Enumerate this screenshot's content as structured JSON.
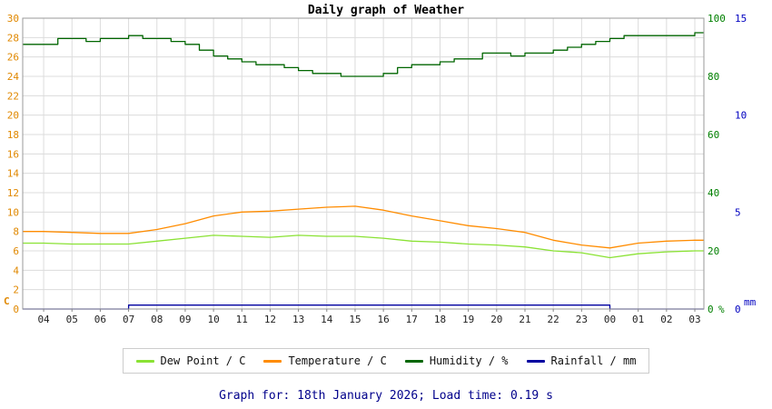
{
  "title": "Daily graph of Weather",
  "footer": "Graph for: 18th January 2026; Load time: 0.19 s",
  "legend": [
    {
      "label": "Dew Point / C",
      "color": "#8ae234"
    },
    {
      "label": "Temperature / C",
      "color": "#ff8c00"
    },
    {
      "label": "Humidity / %",
      "color": "#006600"
    },
    {
      "label": "Rainfall / mm",
      "color": "#0000a0"
    }
  ],
  "chart_data": {
    "type": "line",
    "x_label_hours": [
      "04",
      "05",
      "06",
      "07",
      "08",
      "09",
      "10",
      "11",
      "12",
      "13",
      "14",
      "15",
      "16",
      "17",
      "18",
      "19",
      "20",
      "21",
      "22",
      "23",
      "00",
      "01",
      "02",
      "03"
    ],
    "axes": {
      "left": {
        "unit": "C",
        "color": "#e08800",
        "min": 0,
        "max": 30,
        "ticks": [
          0,
          2,
          4,
          6,
          8,
          10,
          12,
          14,
          16,
          18,
          20,
          22,
          24,
          26,
          28,
          30
        ]
      },
      "right_humidity": {
        "unit": "%",
        "color": "#008000",
        "min": 0,
        "max": 100,
        "ticks": [
          0,
          20,
          40,
          60,
          80,
          100
        ]
      },
      "right_rain": {
        "unit": "mm",
        "color": "#0000c0",
        "min": 0,
        "max": 15,
        "ticks": [
          0,
          5,
          10,
          15
        ]
      }
    },
    "grid": true,
    "legend_position": "bottom",
    "series": [
      {
        "id": "dew-point",
        "name": "Dew Point / C",
        "axis": "left",
        "color": "#8ae234",
        "step": false,
        "x_start": 4,
        "x_step": 1,
        "values": [
          6.8,
          6.7,
          6.7,
          6.7,
          7.0,
          7.3,
          7.6,
          7.5,
          7.4,
          7.6,
          7.5,
          7.5,
          7.3,
          7.0,
          6.9,
          6.7,
          6.6,
          6.4,
          6.0,
          5.8,
          5.3,
          5.7,
          5.9,
          6.0
        ]
      },
      {
        "id": "temperature",
        "name": "Temperature / C",
        "axis": "left",
        "color": "#ff8c00",
        "step": false,
        "x_start": 4,
        "x_step": 1,
        "values": [
          8.0,
          7.9,
          7.8,
          7.8,
          8.2,
          8.8,
          9.6,
          10.0,
          10.1,
          10.3,
          10.5,
          10.6,
          10.2,
          9.6,
          9.1,
          8.6,
          8.3,
          7.9,
          7.1,
          6.6,
          6.3,
          6.8,
          7.0,
          7.1
        ]
      },
      {
        "id": "humidity",
        "name": "Humidity / %",
        "axis": "right_humidity",
        "color": "#006600",
        "step": true,
        "x_start": 4,
        "x_step": 0.5,
        "values": [
          91,
          93,
          93,
          92,
          93,
          93,
          94,
          93,
          93,
          92,
          91,
          89,
          87,
          86,
          85,
          84,
          84,
          83,
          82,
          81,
          81,
          80,
          80,
          80,
          81,
          83,
          84,
          84,
          85,
          86,
          86,
          88,
          88,
          87,
          88,
          88,
          89,
          90,
          91,
          92,
          93,
          94,
          94,
          94,
          94,
          94,
          95
        ]
      },
      {
        "id": "rainfall",
        "name": "Rainfall / mm",
        "axis": "right_rain",
        "color": "#0000a0",
        "step": true,
        "x_start": 4,
        "x_step": 1,
        "values": [
          0,
          0,
          0,
          0.2,
          0.2,
          0.2,
          0.2,
          0.2,
          0.2,
          0.2,
          0.2,
          0.2,
          0.2,
          0.2,
          0.2,
          0.2,
          0.2,
          0.2,
          0.2,
          0.2,
          0,
          0,
          0,
          0
        ]
      }
    ]
  }
}
